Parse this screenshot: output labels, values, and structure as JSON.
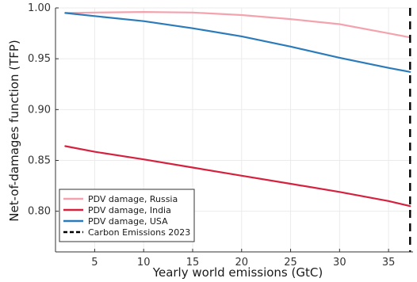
{
  "chart_data": {
    "type": "line",
    "title": "",
    "xlabel": "Yearly world emissions (GtC)",
    "ylabel": "Net-of-damages function (TFP)",
    "xlim": [
      1,
      37.5
    ],
    "ylim": [
      0.76,
      1.0
    ],
    "xticks": [
      5,
      10,
      15,
      20,
      25,
      30,
      35
    ],
    "yticks": [
      0.8,
      0.85,
      0.9,
      0.95,
      1.0
    ],
    "grid": true,
    "legend_position": "bottom-left",
    "series": [
      {
        "name": "PDV damage, Russia",
        "color": "#f4a3ae",
        "x": [
          2,
          5,
          10,
          15,
          20,
          25,
          30,
          35,
          37.2
        ],
        "y": [
          0.995,
          0.9955,
          0.996,
          0.9955,
          0.993,
          0.989,
          0.984,
          0.975,
          0.971
        ]
      },
      {
        "name": "PDV damage, India",
        "color": "#d6213e",
        "x": [
          2,
          5,
          10,
          15,
          20,
          25,
          30,
          35,
          37.2
        ],
        "y": [
          0.864,
          0.8585,
          0.851,
          0.843,
          0.835,
          0.827,
          0.819,
          0.81,
          0.805
        ]
      },
      {
        "name": "PDV damage, USA",
        "color": "#2b7bba",
        "x": [
          2,
          5,
          10,
          15,
          20,
          25,
          30,
          35,
          37.2
        ],
        "y": [
          0.995,
          0.992,
          0.987,
          0.98,
          0.972,
          0.962,
          0.951,
          0.941,
          0.937
        ]
      }
    ],
    "annotations": [
      {
        "name": "Carbon Emissions 2023",
        "type": "vline",
        "x": 37.2,
        "color": "#000000",
        "style": "dashed"
      }
    ]
  }
}
